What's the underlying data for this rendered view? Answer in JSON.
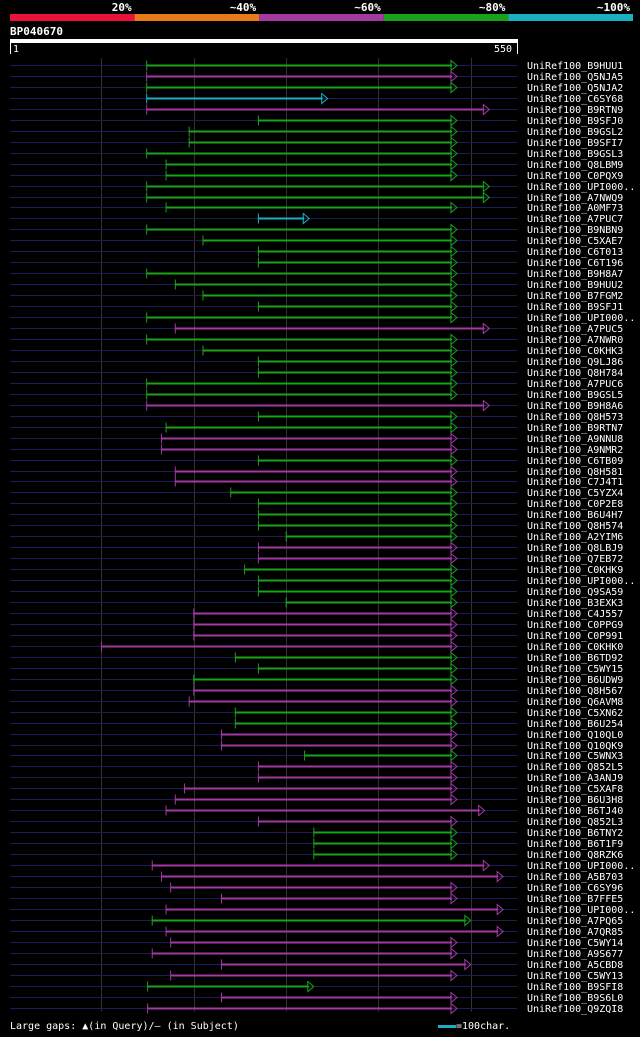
{
  "legend": {
    "colors": [
      "#e8123a",
      "#e87a1a",
      "#a23aa2",
      "#1aa21a",
      "#1ab0c0"
    ],
    "labels": [
      "20%",
      "~40%",
      "~60%",
      "~80%",
      "~100%"
    ]
  },
  "query": {
    "id": "BP040670",
    "start": "1",
    "end": "550",
    "length": 550
  },
  "footer": {
    "gaps_label": "Large gaps:",
    "query_gap": "(in Query)/",
    "subject_gap": "(in Subject)",
    "scale_label": "=100char."
  },
  "hits": [
    {
      "name": "UniRef100_B9HUU1",
      "s": 149,
      "e": 485,
      "c": "g"
    },
    {
      "name": "UniRef100_Q5NJA5",
      "s": 149,
      "e": 485,
      "c": "m"
    },
    {
      "name": "UniRef100_Q5NJA2",
      "s": 149,
      "e": 485,
      "c": "g"
    },
    {
      "name": "UniRef100_C6SY68",
      "s": 149,
      "e": 345,
      "c": "c"
    },
    {
      "name": "UniRef100_B9RTN9",
      "s": 149,
      "e": 520,
      "c": "m"
    },
    {
      "name": "UniRef100_B9SFJ0",
      "s": 270,
      "e": 485,
      "c": "g"
    },
    {
      "name": "UniRef100_B9GSL2",
      "s": 195,
      "e": 485,
      "c": "g"
    },
    {
      "name": "UniRef100_B9SFI7",
      "s": 195,
      "e": 485,
      "c": "g"
    },
    {
      "name": "UniRef100_B9GSL3",
      "s": 149,
      "e": 485,
      "c": "g"
    },
    {
      "name": "UniRef100_Q8LBM9",
      "s": 170,
      "e": 485,
      "c": "g"
    },
    {
      "name": "UniRef100_C0PQX9",
      "s": 170,
      "e": 485,
      "c": "g"
    },
    {
      "name": "UniRef100_UPI000..",
      "s": 149,
      "e": 520,
      "c": "g"
    },
    {
      "name": "UniRef100_A7NWQ9",
      "s": 149,
      "e": 520,
      "c": "g"
    },
    {
      "name": "UniRef100_A0MF73",
      "s": 170,
      "e": 485,
      "c": "g"
    },
    {
      "name": "UniRef100_A7PUC7",
      "s": 270,
      "e": 325,
      "c": "c"
    },
    {
      "name": "UniRef100_B9NBN9",
      "s": 149,
      "e": 485,
      "c": "g"
    },
    {
      "name": "UniRef100_C5XAE7",
      "s": 210,
      "e": 485,
      "c": "g"
    },
    {
      "name": "UniRef100_C6T013",
      "s": 270,
      "e": 485,
      "c": "g"
    },
    {
      "name": "UniRef100_C6T196",
      "s": 270,
      "e": 485,
      "c": "g"
    },
    {
      "name": "UniRef100_B9H8A7",
      "s": 149,
      "e": 485,
      "c": "g"
    },
    {
      "name": "UniRef100_B9HUU2",
      "s": 180,
      "e": 485,
      "c": "g"
    },
    {
      "name": "UniRef100_B7FGM2",
      "s": 210,
      "e": 485,
      "c": "g"
    },
    {
      "name": "UniRef100_B9SFJ1",
      "s": 270,
      "e": 485,
      "c": "g"
    },
    {
      "name": "UniRef100_UPI000..",
      "s": 149,
      "e": 485,
      "c": "g"
    },
    {
      "name": "UniRef100_A7PUC5",
      "s": 180,
      "e": 520,
      "c": "m"
    },
    {
      "name": "UniRef100_A7NWR0",
      "s": 149,
      "e": 485,
      "c": "g"
    },
    {
      "name": "UniRef100_C0KHK3",
      "s": 210,
      "e": 485,
      "c": "g"
    },
    {
      "name": "UniRef100_Q9LJ86",
      "s": 270,
      "e": 485,
      "c": "g"
    },
    {
      "name": "UniRef100_Q8H784",
      "s": 270,
      "e": 485,
      "c": "g"
    },
    {
      "name": "UniRef100_A7PUC6",
      "s": 149,
      "e": 485,
      "c": "g"
    },
    {
      "name": "UniRef100_B9GSL5",
      "s": 149,
      "e": 485,
      "c": "g"
    },
    {
      "name": "UniRef100_B9H8A6",
      "s": 149,
      "e": 520,
      "c": "m"
    },
    {
      "name": "UniRef100_Q8H573",
      "s": 270,
      "e": 485,
      "c": "g"
    },
    {
      "name": "UniRef100_B9RTN7",
      "s": 170,
      "e": 485,
      "c": "g"
    },
    {
      "name": "UniRef100_A9NNU8",
      "s": 165,
      "e": 485,
      "c": "m"
    },
    {
      "name": "UniRef100_A9NMR2",
      "s": 165,
      "e": 485,
      "c": "m"
    },
    {
      "name": "UniRef100_C6TB09",
      "s": 270,
      "e": 485,
      "c": "g"
    },
    {
      "name": "UniRef100_Q8H581",
      "s": 180,
      "e": 485,
      "c": "m"
    },
    {
      "name": "UniRef100_C7J4T1",
      "s": 180,
      "e": 485,
      "c": "m"
    },
    {
      "name": "UniRef100_C5YZX4",
      "s": 240,
      "e": 485,
      "c": "g"
    },
    {
      "name": "UniRef100_C0P2E8",
      "s": 270,
      "e": 485,
      "c": "g"
    },
    {
      "name": "UniRef100_B6U4H7",
      "s": 270,
      "e": 485,
      "c": "g"
    },
    {
      "name": "UniRef100_Q8H574",
      "s": 270,
      "e": 485,
      "c": "g"
    },
    {
      "name": "UniRef100_A2YIM6",
      "s": 300,
      "e": 485,
      "c": "g"
    },
    {
      "name": "UniRef100_Q8LBJ9",
      "s": 270,
      "e": 485,
      "c": "m"
    },
    {
      "name": "UniRef100_Q7EB72",
      "s": 270,
      "e": 485,
      "c": "m"
    },
    {
      "name": "UniRef100_C0KHK9",
      "s": 255,
      "e": 485,
      "c": "g"
    },
    {
      "name": "UniRef100_UPI000..",
      "s": 270,
      "e": 485,
      "c": "g"
    },
    {
      "name": "UniRef100_Q9SA59",
      "s": 270,
      "e": 485,
      "c": "g"
    },
    {
      "name": "UniRef100_B3EXK3",
      "s": 300,
      "e": 485,
      "c": "g"
    },
    {
      "name": "UniRef100_C4J557",
      "s": 200,
      "e": 485,
      "c": "m"
    },
    {
      "name": "UniRef100_C0PPG9",
      "s": 200,
      "e": 485,
      "c": "m"
    },
    {
      "name": "UniRef100_C0P991",
      "s": 200,
      "e": 485,
      "c": "m"
    },
    {
      "name": "UniRef100_C0KHK0",
      "s": 100,
      "e": 485,
      "c": "m"
    },
    {
      "name": "UniRef100_B6TD92",
      "s": 245,
      "e": 485,
      "c": "g"
    },
    {
      "name": "UniRef100_C5WY15",
      "s": 270,
      "e": 485,
      "c": "g"
    },
    {
      "name": "UniRef100_B6UDW9",
      "s": 200,
      "e": 485,
      "c": "g"
    },
    {
      "name": "UniRef100_Q8H567",
      "s": 200,
      "e": 485,
      "c": "m"
    },
    {
      "name": "UniRef100_Q6AVM8",
      "s": 195,
      "e": 485,
      "c": "m"
    },
    {
      "name": "UniRef100_C5XN62",
      "s": 245,
      "e": 485,
      "c": "g"
    },
    {
      "name": "UniRef100_B6U254",
      "s": 245,
      "e": 485,
      "c": "g"
    },
    {
      "name": "UniRef100_Q10QL0",
      "s": 230,
      "e": 485,
      "c": "m"
    },
    {
      "name": "UniRef100_Q10QK9",
      "s": 230,
      "e": 485,
      "c": "m"
    },
    {
      "name": "UniRef100_C5WNX3",
      "s": 320,
      "e": 485,
      "c": "g"
    },
    {
      "name": "UniRef100_Q852L5",
      "s": 270,
      "e": 485,
      "c": "m"
    },
    {
      "name": "UniRef100_A3ANJ9",
      "s": 270,
      "e": 485,
      "c": "m"
    },
    {
      "name": "UniRef100_C5XAF8",
      "s": 190,
      "e": 485,
      "c": "m"
    },
    {
      "name": "UniRef100_B6U3H8",
      "s": 180,
      "e": 485,
      "c": "m"
    },
    {
      "name": "UniRef100_B6TJ40",
      "s": 170,
      "e": 515,
      "c": "m"
    },
    {
      "name": "UniRef100_Q852L3",
      "s": 270,
      "e": 485,
      "c": "m"
    },
    {
      "name": "UniRef100_B6TNY2",
      "s": 330,
      "e": 485,
      "c": "g"
    },
    {
      "name": "UniRef100_B6T1F9",
      "s": 330,
      "e": 485,
      "c": "g"
    },
    {
      "name": "UniRef100_Q8RZK6",
      "s": 330,
      "e": 485,
      "c": "g"
    },
    {
      "name": "UniRef100_UPI000..",
      "s": 155,
      "e": 520,
      "c": "m"
    },
    {
      "name": "UniRef100_A5B703",
      "s": 165,
      "e": 535,
      "c": "m"
    },
    {
      "name": "UniRef100_C6SY96",
      "s": 175,
      "e": 485,
      "c": "m"
    },
    {
      "name": "UniRef100_B7FFE5",
      "s": 230,
      "e": 485,
      "c": "m"
    },
    {
      "name": "UniRef100_UPI000..",
      "s": 170,
      "e": 535,
      "c": "m"
    },
    {
      "name": "UniRef100_A7PQ65",
      "s": 155,
      "e": 500,
      "c": "g"
    },
    {
      "name": "UniRef100_A7QR85",
      "s": 170,
      "e": 535,
      "c": "m"
    },
    {
      "name": "UniRef100_C5WY14",
      "s": 175,
      "e": 485,
      "c": "m"
    },
    {
      "name": "UniRef100_A9S677",
      "s": 155,
      "e": 485,
      "c": "m"
    },
    {
      "name": "UniRef100_A5CBD8",
      "s": 230,
      "e": 500,
      "c": "m"
    },
    {
      "name": "UniRef100_C5WY13",
      "s": 175,
      "e": 485,
      "c": "m"
    },
    {
      "name": "UniRef100_B9SFI8",
      "s": 150,
      "e": 330,
      "c": "g"
    },
    {
      "name": "UniRef100_B9S6L0",
      "s": 230,
      "e": 485,
      "c": "m"
    },
    {
      "name": "UniRef100_Q9ZQI8",
      "s": 150,
      "e": 485,
      "c": "m"
    }
  ]
}
